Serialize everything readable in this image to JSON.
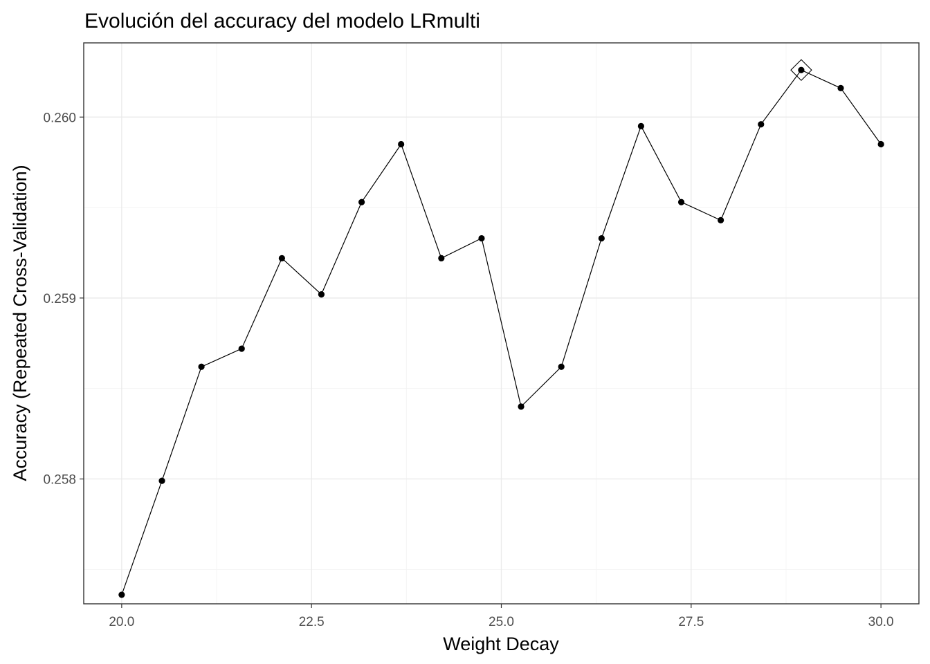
{
  "chart_data": {
    "type": "line",
    "title": "Evolución del accuracy del modelo LRmulti",
    "xlabel": "Weight Decay",
    "ylabel": "Accuracy (Repeated Cross-Validation)",
    "xlim": [
      19.5,
      30.5
    ],
    "ylim": [
      0.25731,
      0.26041
    ],
    "x_major_ticks": [
      20.0,
      22.5,
      25.0,
      27.5,
      30.0
    ],
    "x_tick_labels": [
      "20.0",
      "22.5",
      "25.0",
      "27.5",
      "30.0"
    ],
    "x_minor_ticks": [
      21.25,
      23.75,
      26.25,
      28.75
    ],
    "y_major_ticks": [
      0.258,
      0.259,
      0.26
    ],
    "y_tick_labels": [
      "0.258",
      "0.259",
      "0.260"
    ],
    "y_minor_ticks": [
      0.2575,
      0.2585,
      0.2595,
      0.2605
    ],
    "grid": true,
    "legend": "none",
    "series": [
      {
        "x": [
          20.0,
          20.53,
          21.05,
          21.58,
          22.11,
          22.63,
          23.16,
          23.68,
          24.21,
          24.74,
          25.26,
          25.79,
          26.32,
          26.84,
          27.37,
          27.89,
          28.42,
          28.95,
          29.47,
          30.0
        ],
        "values": [
          0.25736,
          0.25799,
          0.25862,
          0.25872,
          0.25922,
          0.25902,
          0.25953,
          0.25985,
          0.25922,
          0.25933,
          0.2584,
          0.25862,
          0.25933,
          0.25995,
          0.25953,
          0.25943,
          0.25996,
          0.26026,
          0.26016,
          0.25985
        ],
        "color": "#000000"
      }
    ],
    "best_point": {
      "x": 28.95,
      "y": 0.26026,
      "marker": "diamond-open"
    }
  }
}
